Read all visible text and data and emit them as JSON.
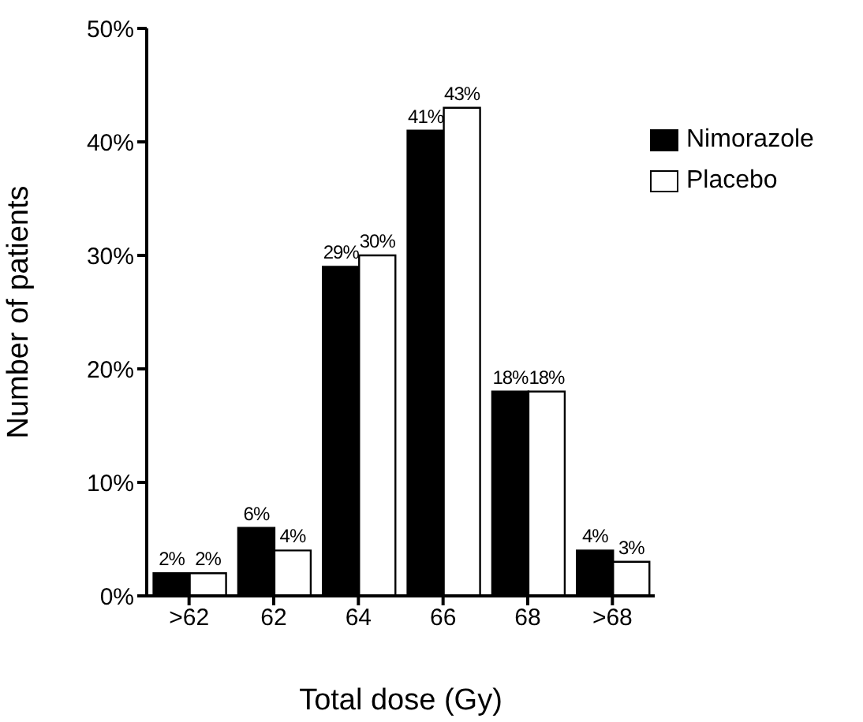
{
  "chart_data": {
    "type": "bar",
    "xlabel": "Total dose (Gy)",
    "ylabel": "Number of patients",
    "categories": [
      ">62",
      "62",
      "64",
      "66",
      "68",
      ">68"
    ],
    "series": [
      {
        "name": "Nimorazole",
        "color": "#000000",
        "values": [
          2,
          6,
          29,
          41,
          18,
          4
        ],
        "value_labels": [
          "2%",
          "6%",
          "29%",
          "41%",
          "18%",
          "4%"
        ]
      },
      {
        "name": "Placebo",
        "color": "#ffffff",
        "values": [
          2,
          4,
          30,
          43,
          18,
          3
        ],
        "value_labels": [
          "2%",
          "4%",
          "30%",
          "43%",
          "18%",
          "3%"
        ]
      }
    ],
    "ylim": [
      0,
      50
    ],
    "yticks": [
      {
        "value": 0,
        "label": "0%"
      },
      {
        "value": 10,
        "label": "10%"
      },
      {
        "value": 20,
        "label": "20%"
      },
      {
        "value": 30,
        "label": "30%"
      },
      {
        "value": 40,
        "label": "40%"
      },
      {
        "value": 50,
        "label": "50%"
      }
    ],
    "grid": false,
    "legend": "top right"
  }
}
